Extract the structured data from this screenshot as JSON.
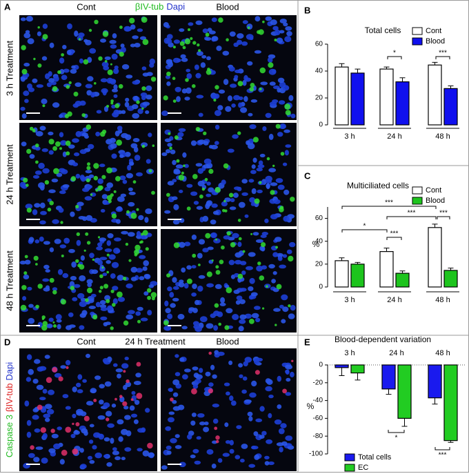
{
  "panel_labels": [
    "A",
    "B",
    "C",
    "D",
    "E"
  ],
  "panel_a": {
    "columns": [
      "Cont",
      "Blood"
    ],
    "stain": [
      "βIV-tub",
      "Dapi"
    ],
    "rows": [
      "3 h Treatment",
      "24 h Treatment",
      "48 h Treatment"
    ]
  },
  "panel_d": {
    "columns": [
      "Cont",
      "Blood"
    ],
    "title": "24 h Treatment",
    "stain": [
      "Caspase 3",
      "βIV-tub",
      "Dapi"
    ]
  },
  "chart_data": [
    {
      "type": "bar",
      "title": "Total cells",
      "categories": [
        "3 h",
        "24 h",
        "48 h"
      ],
      "series": [
        {
          "name": "Cont",
          "color": "#ffffff",
          "values": [
            43,
            41.5,
            44.5
          ],
          "errors": [
            2.5,
            1.5,
            2
          ]
        },
        {
          "name": "Blood",
          "color": "#1010ee",
          "values": [
            38.5,
            32,
            27
          ],
          "errors": [
            3,
            3,
            2
          ]
        }
      ],
      "ylim": [
        0,
        60
      ],
      "yticks": [
        0,
        20,
        40,
        60
      ],
      "annotations": [
        "*",
        "***"
      ]
    },
    {
      "type": "bar",
      "title": "Multiciliated cells",
      "ylabel": "%",
      "categories": [
        "3 h",
        "24 h",
        "48 h"
      ],
      "series": [
        {
          "name": "Cont",
          "color": "#ffffff",
          "values": [
            23,
            31,
            52
          ],
          "errors": [
            2.5,
            3,
            3
          ]
        },
        {
          "name": "Blood",
          "color": "#1dc41d",
          "values": [
            20,
            12,
            14.5
          ],
          "errors": [
            1.5,
            2,
            2
          ]
        }
      ],
      "ylim": [
        0,
        70
      ],
      "yticks": [
        0,
        20,
        40,
        60
      ],
      "annotations": [
        "***",
        "***",
        "***",
        "*",
        "***"
      ]
    },
    {
      "type": "bar",
      "title": "Blood-dependent variation",
      "ylabel": "%",
      "categories": [
        "3 h",
        "24 h",
        "48 h"
      ],
      "series": [
        {
          "name": "Total cells",
          "color": "#1a1aee",
          "values": [
            -3,
            -27,
            -37
          ],
          "errors": [
            9,
            6,
            7
          ]
        },
        {
          "name": "EC",
          "color": "#22cc22",
          "values": [
            -9,
            -60,
            -85
          ],
          "errors": [
            8,
            9,
            2
          ]
        }
      ],
      "ylim": [
        -100,
        0
      ],
      "yticks": [
        0,
        -20,
        -40,
        -60,
        -80,
        -100
      ],
      "annotations": [
        "*",
        "***"
      ]
    }
  ]
}
